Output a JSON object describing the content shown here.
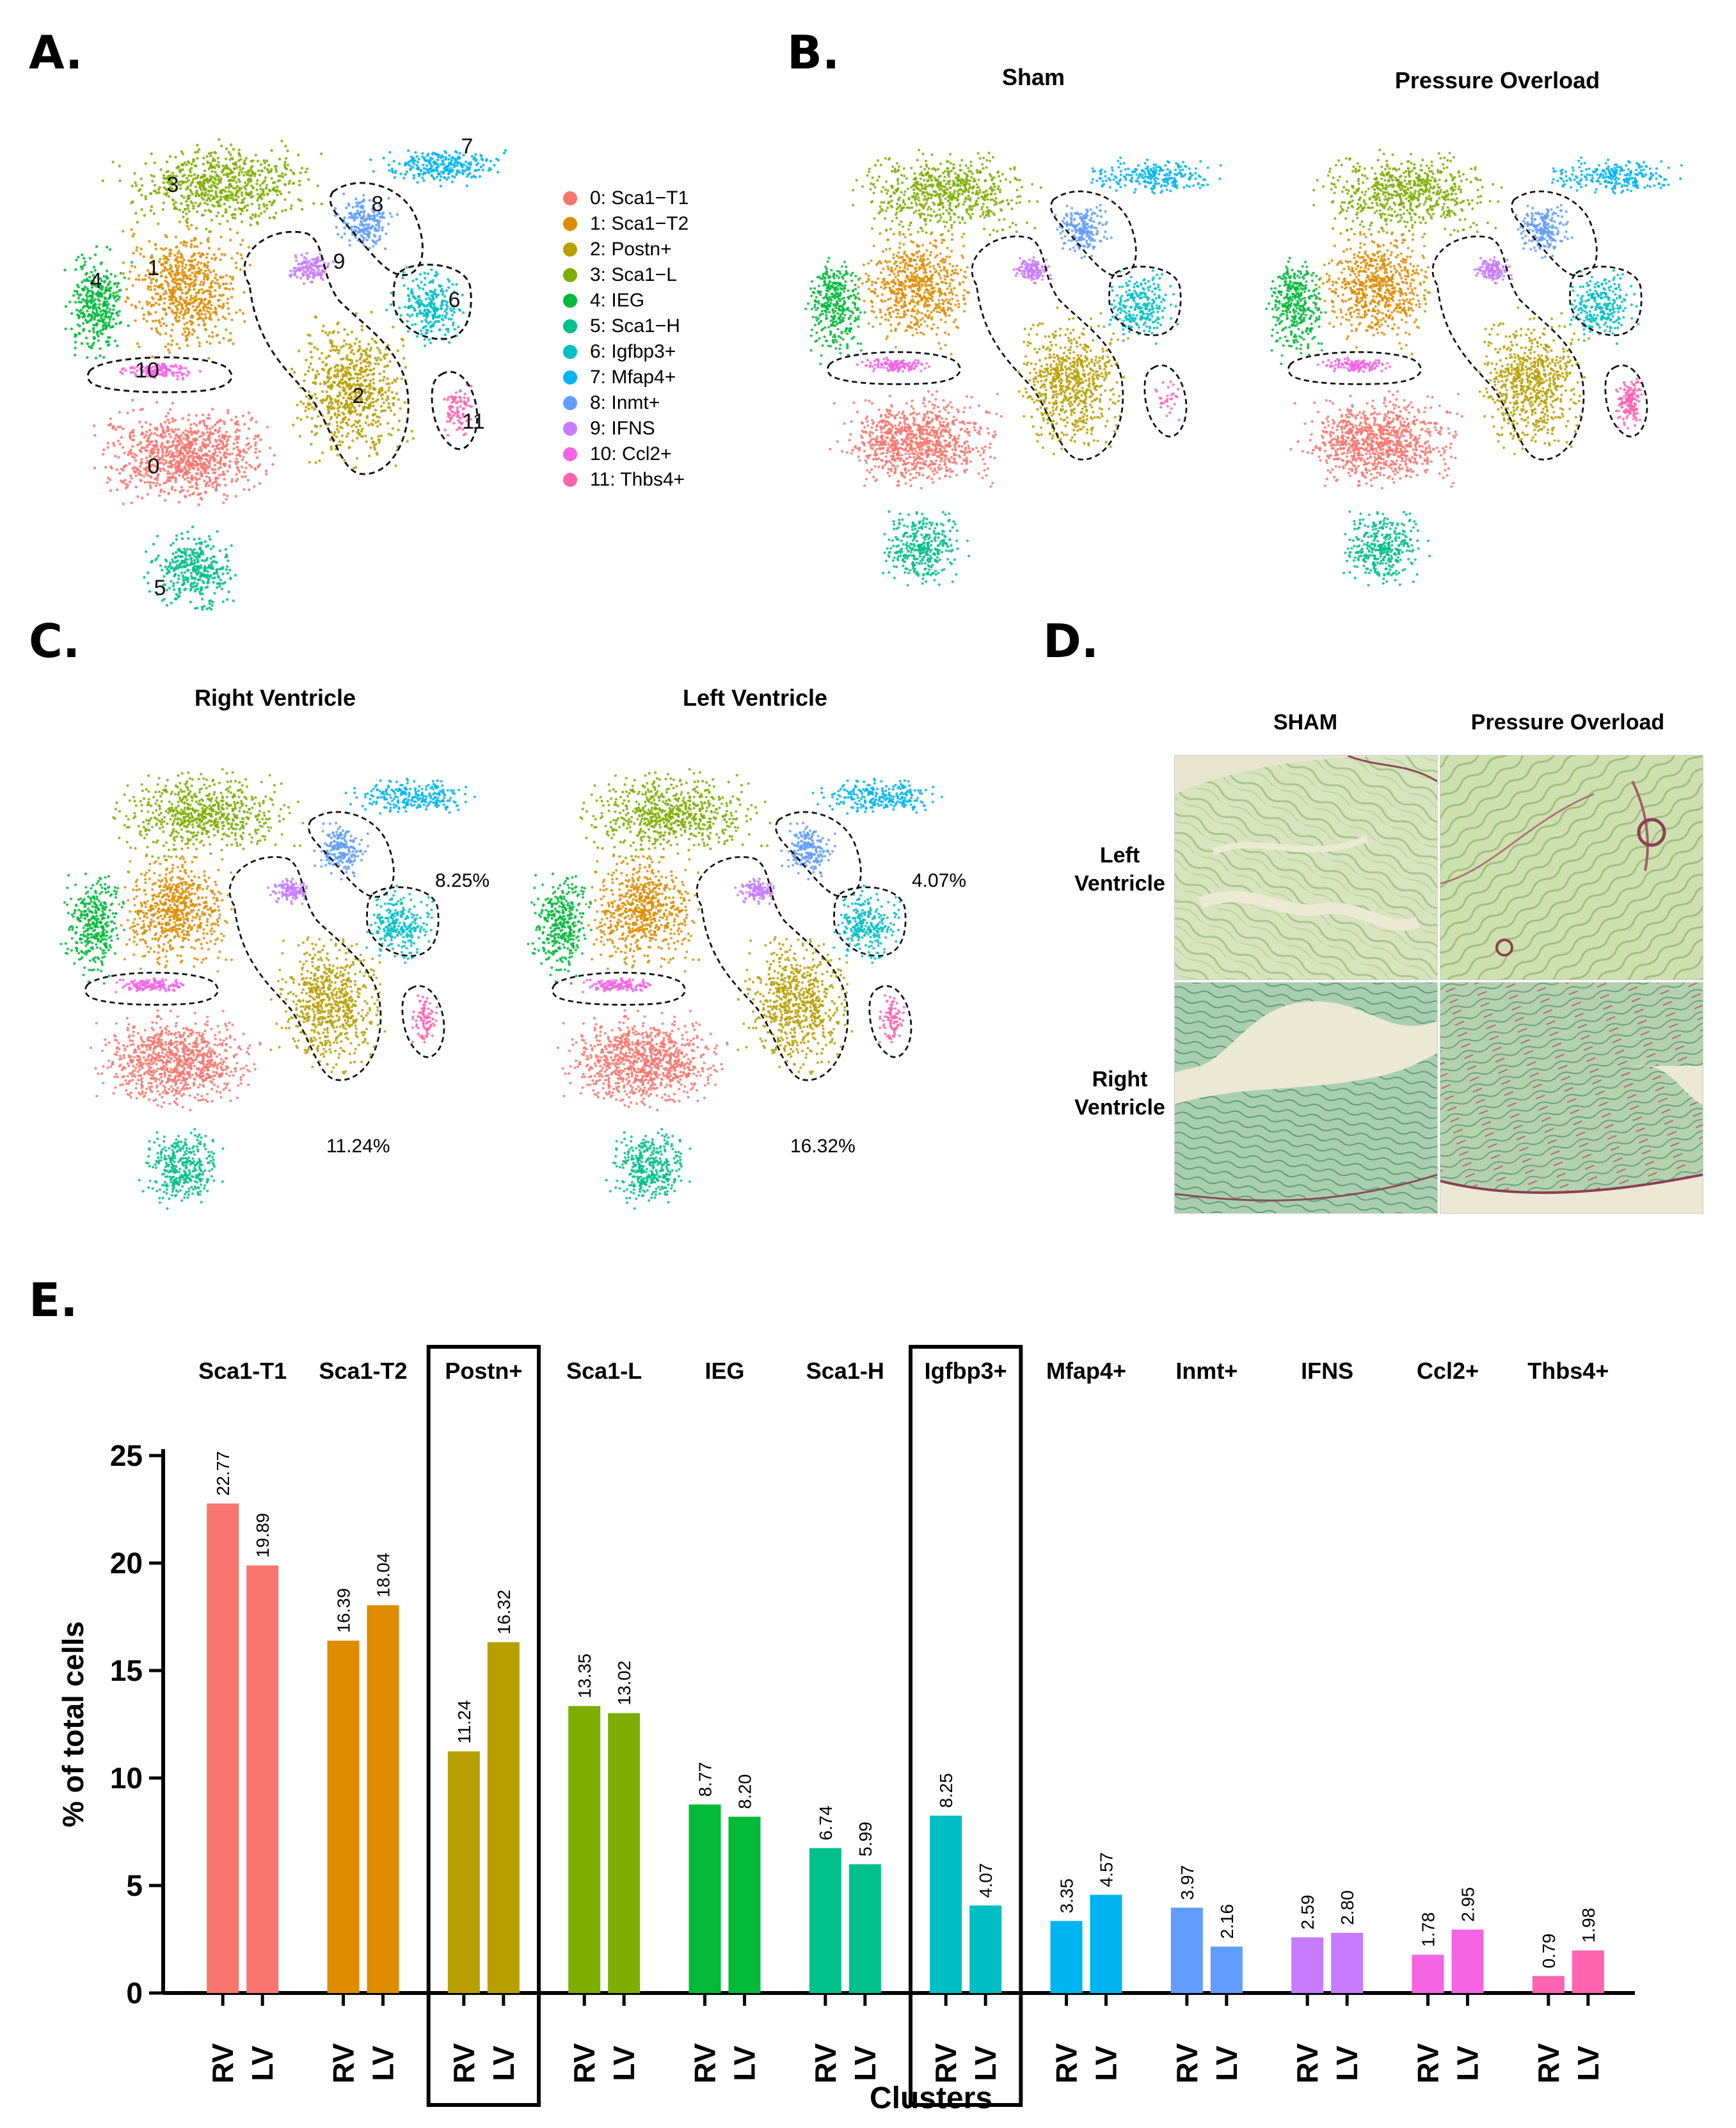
{
  "panel_letters": {
    "a": "A.",
    "b": "B.",
    "c": "C.",
    "d": "D.",
    "e": "E."
  },
  "panel_b": {
    "sham": "Sham",
    "overload": "Pressure Overload"
  },
  "panel_c": {
    "rv": "Right Ventricle",
    "lv": "Left Ventricle",
    "rv_igfbp3_pct": "8.25%",
    "rv_postn_pct": "11.24%",
    "lv_igfbp3_pct": "4.07%",
    "lv_postn_pct": "16.32%"
  },
  "panel_d": {
    "sham": "SHAM",
    "overload": "Pressure Overload",
    "lv_label": "Left\nVentricle",
    "rv_label": "Right\nVentricle",
    "lv_l1": "Left",
    "lv_l2": "Ventricle",
    "rv_l1": "Right",
    "rv_l2": "Ventricle"
  },
  "legend": [
    {
      "label": "0: Sca1−T1",
      "color": "#f8766d",
      "num": "0"
    },
    {
      "label": "1: Sca1−T2",
      "color": "#de8c00",
      "num": "1"
    },
    {
      "label": "2: Postn+",
      "color": "#b79f00",
      "num": "2"
    },
    {
      "label": "3: Sca1−L",
      "color": "#7cae00",
      "num": "3"
    },
    {
      "label": "4: IEG",
      "color": "#00ba38",
      "num": "4"
    },
    {
      "label": "5: Sca1−H",
      "color": "#00c08b",
      "num": "5"
    },
    {
      "label": "6: Igfbp3+",
      "color": "#00bfc4",
      "num": "6"
    },
    {
      "label": "7: Mfap4+",
      "color": "#00b4f0",
      "num": "7"
    },
    {
      "label": "8: Inmt+",
      "color": "#619cff",
      "num": "8"
    },
    {
      "label": "9: IFNS",
      "color": "#c77cff",
      "num": "9"
    },
    {
      "label": "10: Ccl2+",
      "color": "#f564e3",
      "num": "10"
    },
    {
      "label": "11: Thbs4+",
      "color": "#ff64b0",
      "num": "11"
    }
  ],
  "chart_data": {
    "type": "bar",
    "title": "",
    "xlabel": "Clusters",
    "ylabel": "% of total cells",
    "ylim": [
      0,
      25
    ],
    "yticks": [
      "0",
      "5",
      "10",
      "15",
      "20",
      "25"
    ],
    "categories": [
      "Sca1-T1",
      "Sca1-T2",
      "Postn+",
      "Sca1-L",
      "IEG",
      "Sca1-H",
      "Igfbp3+",
      "Mfap4+",
      "Inmt+",
      "IFNS",
      "Ccl2+",
      "Thbs4+"
    ],
    "colors": [
      "#f8766d",
      "#de8c00",
      "#b79f00",
      "#7cae00",
      "#00ba38",
      "#00c08b",
      "#00bfc4",
      "#00b4f0",
      "#619cff",
      "#c77cff",
      "#f564e3",
      "#ff64b0"
    ],
    "bar_labels": [
      "RV",
      "LV"
    ],
    "highlighted": [
      "Postn+",
      "Igfbp3+"
    ],
    "series": [
      {
        "name": "RV",
        "values": [
          22.77,
          16.39,
          11.24,
          13.35,
          8.77,
          6.74,
          8.25,
          3.35,
          3.97,
          2.59,
          1.78,
          0.79
        ],
        "labels": [
          "22.77",
          "16.39",
          "11.24",
          "13.35",
          "8.77",
          "6.74",
          "8.25",
          "3.35",
          "3.97",
          "2.59",
          "1.78",
          "0.79"
        ]
      },
      {
        "name": "LV",
        "values": [
          19.89,
          18.04,
          16.32,
          13.02,
          8.2,
          5.99,
          4.07,
          4.57,
          2.16,
          2.8,
          2.95,
          1.98
        ],
        "labels": [
          "19.89",
          "18.04",
          "16.32",
          "13.02",
          "8.20",
          "5.99",
          "4.07",
          "4.57",
          "2.16",
          "2.80",
          "2.95",
          "1.98"
        ]
      }
    ]
  }
}
